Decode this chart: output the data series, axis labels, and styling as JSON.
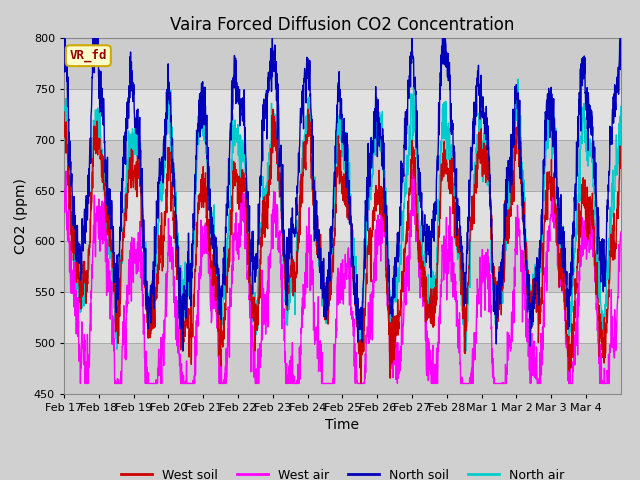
{
  "title": "Vaira Forced Diffusion CO2 Concentration",
  "xlabel": "Time",
  "ylabel": "CO2 (ppm)",
  "ylim": [
    450,
    800
  ],
  "yticks": [
    450,
    500,
    550,
    600,
    650,
    700,
    750,
    800
  ],
  "legend_labels": [
    "West soil",
    "West air",
    "North soil",
    "North air"
  ],
  "legend_colors": [
    "#cc0000",
    "#ff00ff",
    "#0000bb",
    "#00cccc"
  ],
  "line_colors": {
    "west_soil": "#cc0000",
    "west_air": "#ff00ff",
    "north_soil": "#0000bb",
    "north_air": "#00cccc"
  },
  "annotation_text": "VR_fd",
  "annotation_color": "#990000",
  "annotation_bg": "#ffffcc",
  "annotation_border": "#ccaa00",
  "background_color": "#d8d8d8",
  "plot_bg_color": "#d8d8d8",
  "grid_color": "#bbbbbb",
  "band_colors": [
    "#cccccc",
    "#e0e0e0"
  ],
  "title_fontsize": 12,
  "axis_fontsize": 10,
  "tick_fontsize": 8,
  "n_points": 2000,
  "start_day": 0.0,
  "end_day": 16.0,
  "date_labels": [
    "Feb 17",
    "Feb 18",
    "Feb 19",
    "Feb 20",
    "Feb 21",
    "Feb 22",
    "Feb 23",
    "Feb 24",
    "Feb 25",
    "Feb 26",
    "Feb 27",
    "Feb 28",
    "Mar 1",
    "Mar 2",
    "Mar 3",
    "Mar 4"
  ],
  "date_ticks": [
    0,
    1,
    2,
    3,
    4,
    5,
    6,
    7,
    8,
    9,
    10,
    11,
    12,
    13,
    14,
    15
  ]
}
